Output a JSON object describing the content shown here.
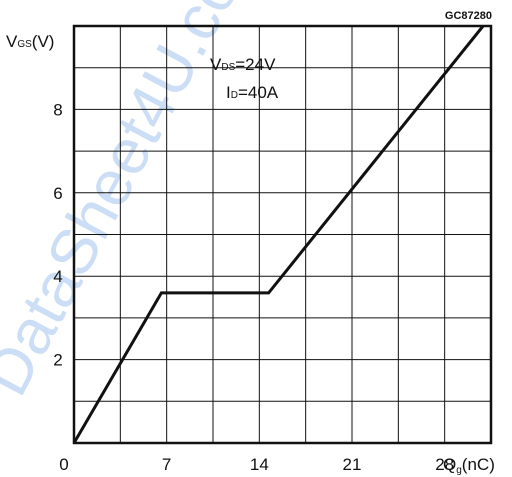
{
  "chart_data": {
    "type": "line",
    "figure_code": "GC87280",
    "ylabel": "V",
    "ylabel_sub": "GS",
    "ylabel_unit": "(V)",
    "xlabel": "Q",
    "xlabel_sub": "g",
    "xlabel_unit": "(nC)",
    "xlim": [
      0,
      31.5
    ],
    "ylim": [
      0,
      10
    ],
    "x_ticks": [
      0,
      7,
      14,
      21,
      28
    ],
    "x_tick_labels": [
      "0",
      "7",
      "14",
      "21",
      "28"
    ],
    "y_ticks": [
      2,
      4,
      6,
      8
    ],
    "y_tick_labels": [
      "2",
      "4",
      "6",
      "8"
    ],
    "x_grid_step": 3.5,
    "y_grid_step": 1,
    "grid": true,
    "annotations": [
      {
        "sym": "V",
        "sub": "DS",
        "text": "=24V"
      },
      {
        "sym": "I",
        "sub": "D",
        "text": "=40A"
      }
    ],
    "series": [
      {
        "x": [
          0,
          6.6,
          14.7,
          30.9
        ],
        "y": [
          0,
          3.6,
          3.6,
          10
        ]
      }
    ]
  },
  "watermark": "DataSheet4U.com"
}
